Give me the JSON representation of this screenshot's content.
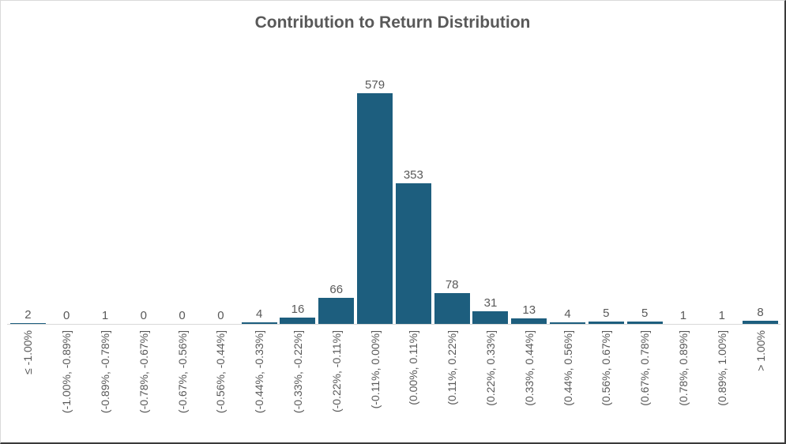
{
  "title": "Contribution to Return Distribution",
  "colors": {
    "bar": "#1d5e7e",
    "title_text": "#595959",
    "data_label_text": "#595959",
    "tick_label_text": "#595959",
    "axis_line": "#d9d9d9"
  },
  "chart_data": {
    "type": "bar",
    "title": "Contribution to Return Distribution",
    "categories": [
      "≤ -1.00%",
      "(-1.00%, -0.89%]",
      "(-0.89%, -0.78%]",
      "(-0.78%, -0.67%]",
      "(-0.67%, -0.56%]",
      "(-0.56%, -0.44%]",
      "(-0.44%, -0.33%]",
      "(-0.33%, -0.22%]",
      "(-0.22%, -0.11%]",
      "(-0.11%, 0.00%]",
      "(0.00%, 0.11%]",
      "(0.11%, 0.22%]",
      "(0.22%, 0.33%]",
      "(0.33%, 0.44%]",
      "(0.44%, 0.56%]",
      "(0.56%, 0.67%]",
      "(0.67%, 0.78%]",
      "(0.78%, 0.89%]",
      "(0.89%, 1.00%]",
      "> 1.00%"
    ],
    "values": [
      2,
      0,
      1,
      0,
      0,
      0,
      4,
      16,
      66,
      579,
      353,
      78,
      31,
      13,
      4,
      5,
      5,
      1,
      1,
      8
    ],
    "xlabel": "",
    "ylabel": "",
    "ylim": [
      0,
      600
    ],
    "grid": false,
    "legend": false,
    "data_labels_shown": true,
    "x_tick_rotation_degrees": 90
  }
}
